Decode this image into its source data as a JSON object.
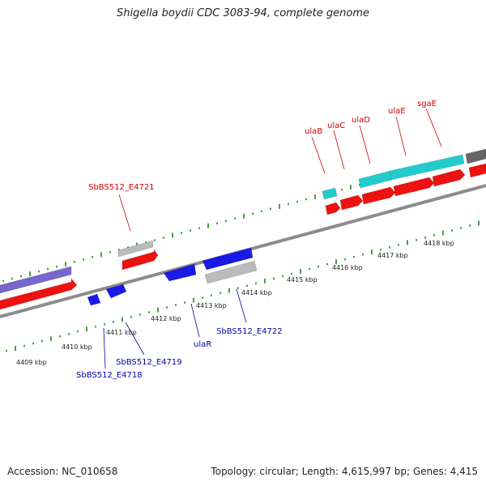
{
  "title": "Shigella boydii CDC 3083-94, complete genome",
  "footer": {
    "accession": "Accession: NC_010658",
    "summary": "Topology: circular; Length: 4,615,997 bp; Genes: 4,415"
  },
  "colors": {
    "backbone": "#8c8c8c",
    "tick": "#1a8a1a",
    "red_gene": "#ee1111",
    "cyan_gene": "#22cccc",
    "blue_gene": "#1a1ae6",
    "purple_gene": "#7766cc",
    "gray_gene": "#bbbbbb",
    "dark_gene": "#666666",
    "upper_label": "#cc0000",
    "lower_label": "#0000aa"
  },
  "scale_labels": [
    "4409 kbp",
    "4410 kbp",
    "4411 kbp",
    "4412 kbp",
    "4413 kbp",
    "4414 kbp",
    "4415 kbp",
    "4416 kbp",
    "4417 kbp",
    "4418 kbp"
  ],
  "upper_labels": [
    "SbBS512_E4721",
    "ulaB",
    "ulaC",
    "ulaD",
    "ulaE",
    "sgaE"
  ],
  "lower_labels": [
    "SbBS512_E4718",
    "SbBS512_E4719",
    "ulaR",
    "SbBS512_E4722"
  ]
}
